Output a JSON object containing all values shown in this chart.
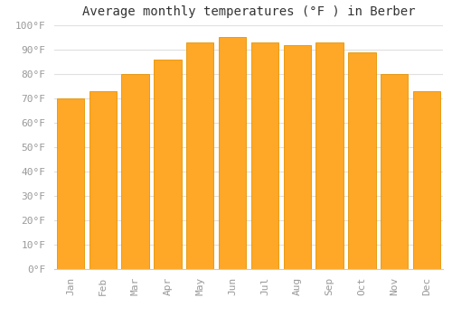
{
  "title": "Average monthly temperatures (°F ) in Berber",
  "months": [
    "Jan",
    "Feb",
    "Mar",
    "Apr",
    "May",
    "Jun",
    "Jul",
    "Aug",
    "Sep",
    "Oct",
    "Nov",
    "Dec"
  ],
  "values": [
    70,
    73,
    80,
    86,
    93,
    95,
    93,
    92,
    93,
    89,
    80,
    73
  ],
  "bar_color_main": "#FFA726",
  "bar_color_left": "#FFB74D",
  "bar_edge_color": "#E59400",
  "background_color": "#FFFFFF",
  "grid_color": "#E0E0E0",
  "ylim": [
    0,
    100
  ],
  "yticks": [
    0,
    10,
    20,
    30,
    40,
    50,
    60,
    70,
    80,
    90,
    100
  ],
  "title_fontsize": 10,
  "tick_fontsize": 8,
  "tick_color": "#999999"
}
